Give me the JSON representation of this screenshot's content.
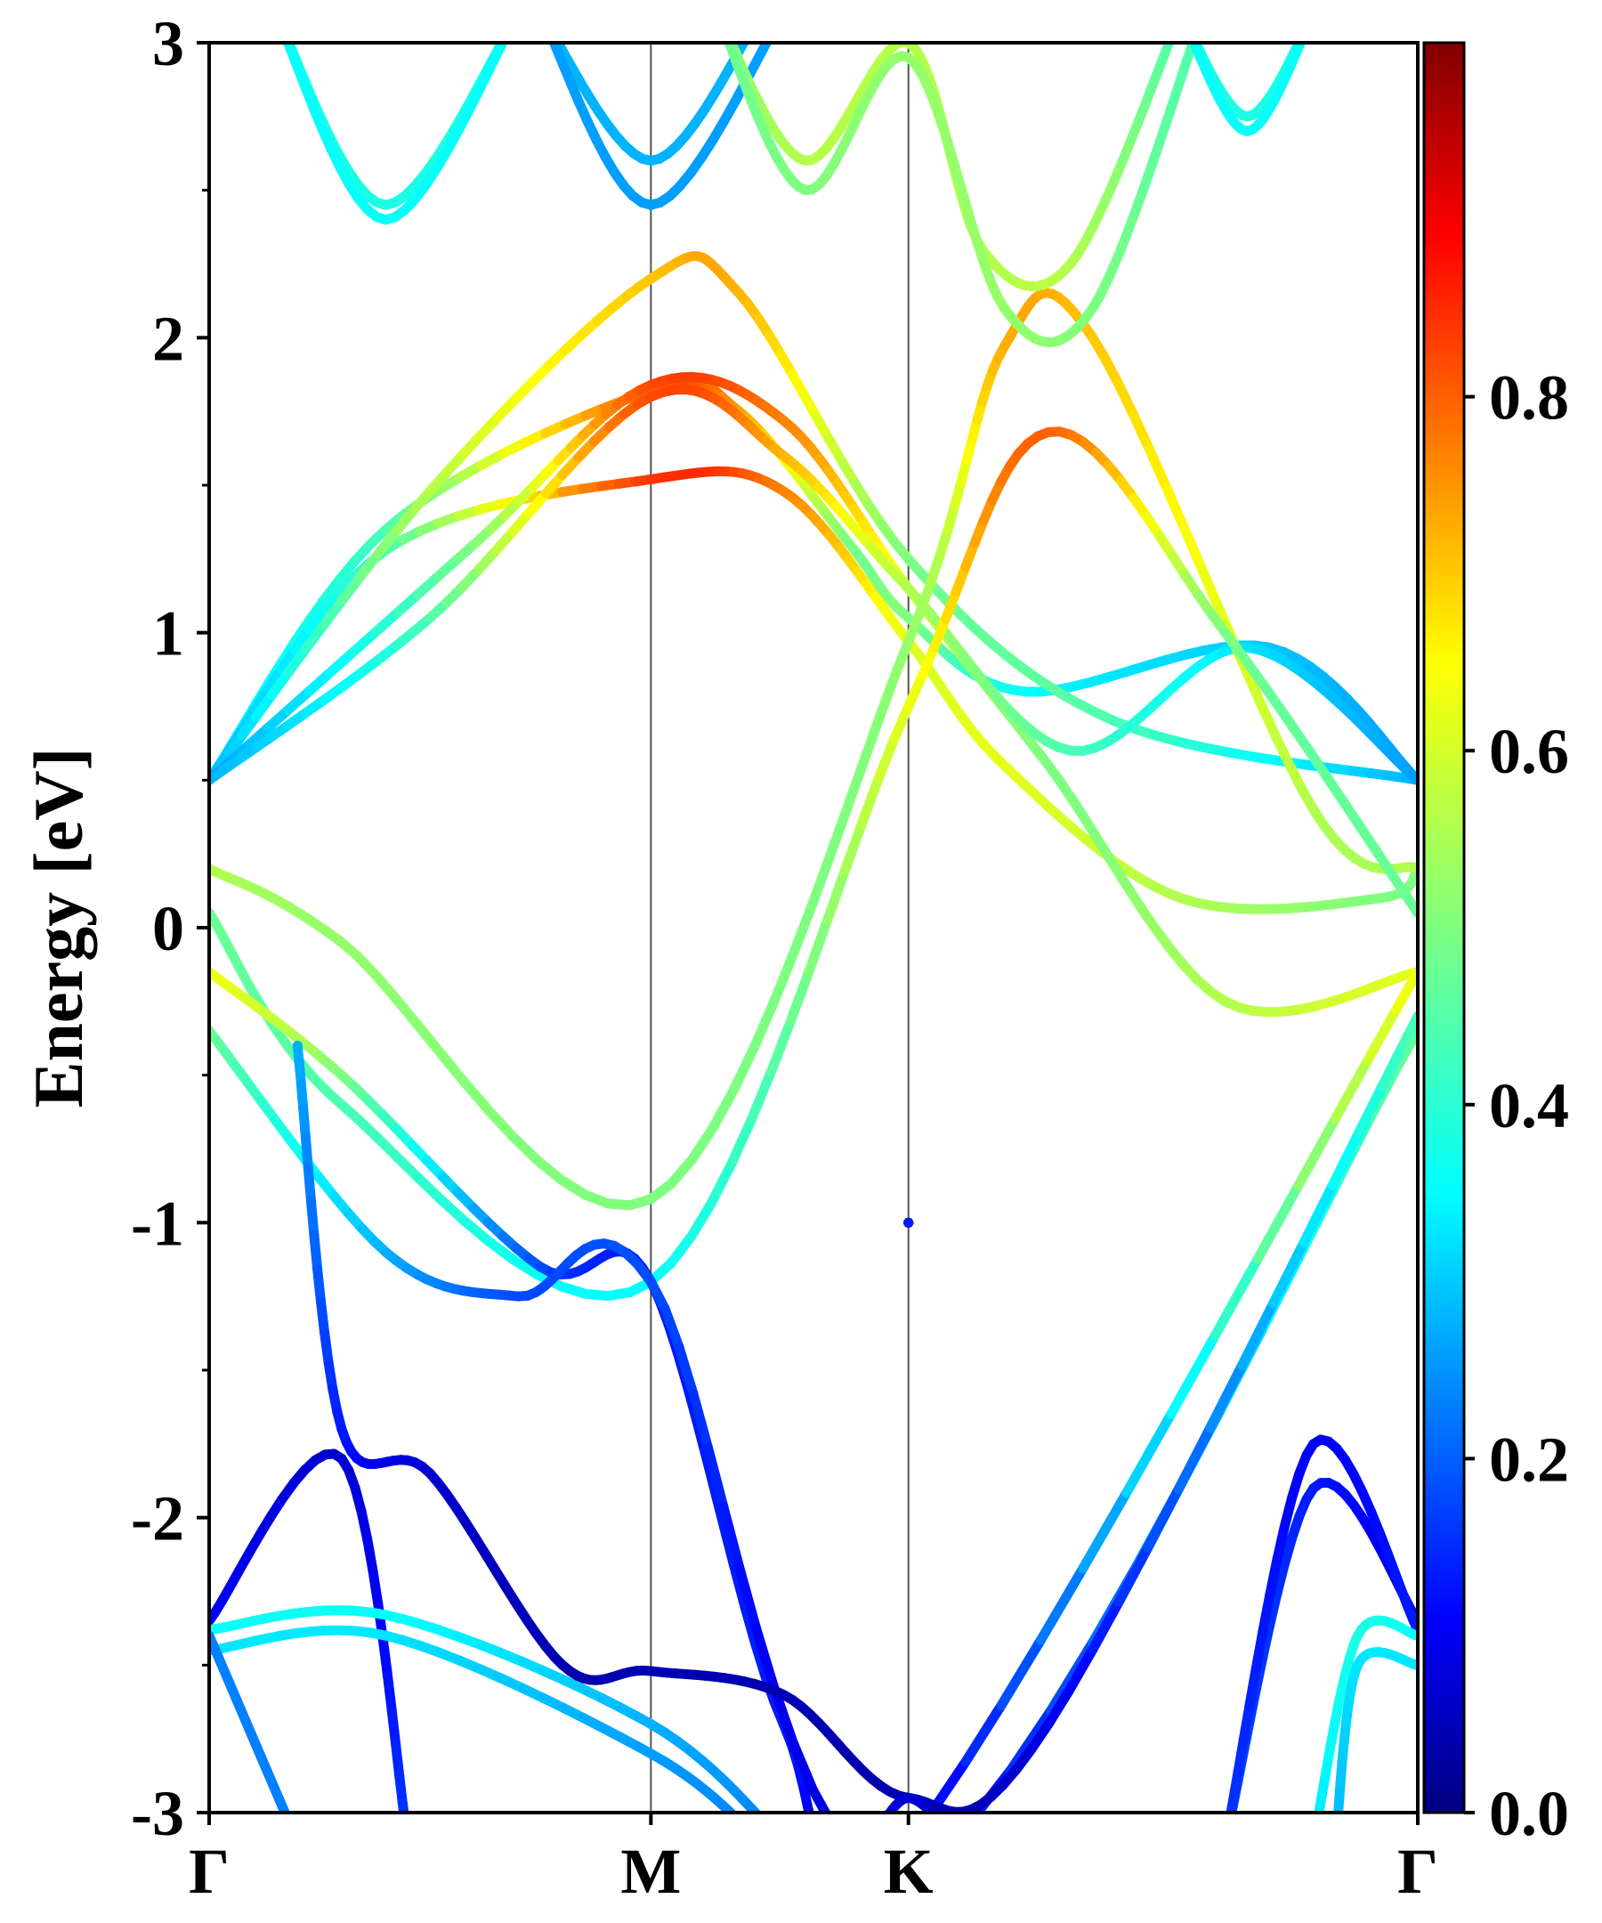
{
  "chart_data": {
    "type": "line",
    "xlabel": "",
    "ylabel": "Energy [eV]",
    "ylim": [
      -3,
      3
    ],
    "y_ticks": [
      "3",
      "2",
      "1",
      "0",
      "-1",
      "-2",
      "-3"
    ],
    "y_tick_values": [
      3,
      2,
      1,
      0,
      -1,
      -2,
      -3
    ],
    "x_ticks": [
      "Γ",
      "M",
      "K",
      "Γ"
    ],
    "x_tick_values": [
      0,
      1,
      1.583,
      2.736
    ],
    "xlim": [
      0,
      2.736
    ],
    "grid": "vertical lines at high-symmetry points",
    "colorbar": {
      "colormap": "jet",
      "range": [
        0,
        1
      ],
      "ticks": [
        "0.0",
        "0.2",
        "0.4",
        "0.6",
        "0.8"
      ],
      "tick_values": [
        0.0,
        0.2,
        0.4,
        0.6,
        0.8
      ]
    },
    "series": [
      {
        "values": [
          [
            0,
            0.5,
            0.35
          ],
          [
            0.4,
            1.35,
            0.45
          ],
          [
            1,
            1.82,
            0.78
          ],
          [
            1.2,
            1.75,
            0.72
          ],
          [
            1.45,
            1.3,
            0.5
          ],
          [
            1.583,
            1.05,
            0.5
          ],
          [
            1.85,
            0.8,
            0.38
          ],
          [
            2.4,
            0.95,
            0.32
          ],
          [
            2.736,
            0.5,
            0.28
          ]
        ]
      },
      {
        "values": [
          [
            0,
            0.5,
            0.3
          ],
          [
            0.4,
            1.28,
            0.45
          ],
          [
            1,
            1.52,
            0.82
          ],
          [
            1.3,
            1.48,
            0.75
          ],
          [
            1.583,
            0.97,
            0.6
          ],
          [
            1.8,
            0.55,
            0.6
          ],
          [
            2.2,
            0.1,
            0.55
          ],
          [
            2.65,
            0.1,
            0.5
          ],
          [
            2.736,
            0.2,
            0.5
          ]
        ]
      },
      {
        "values": [
          [
            0,
            0.5,
            0.3
          ],
          [
            0.5,
            1.48,
            0.55
          ],
          [
            1,
            2.2,
            0.68
          ],
          [
            1.2,
            2.15,
            0.7
          ],
          [
            1.583,
            1.25,
            0.5
          ],
          [
            2.05,
            0.7,
            0.45
          ],
          [
            2.736,
            0.5,
            0.3
          ]
        ]
      },
      {
        "values": [
          [
            0,
            0.5,
            0.28
          ],
          [
            0.6,
            1.3,
            0.5
          ],
          [
            1,
            1.84,
            0.8
          ],
          [
            1.3,
            1.72,
            0.75
          ],
          [
            1.583,
            1.15,
            0.6
          ],
          [
            1.9,
            0.55,
            0.5
          ],
          [
            2.3,
            -0.25,
            0.55
          ],
          [
            2.736,
            -0.15,
            0.6
          ]
        ]
      },
      {
        "values": [
          [
            0,
            0.5,
            0.3
          ],
          [
            0.5,
            1.05,
            0.45
          ],
          [
            1,
            1.8,
            0.8
          ],
          [
            1.3,
            1.6,
            0.7
          ],
          [
            1.583,
            1.15,
            0.55
          ],
          [
            1.95,
            0.6,
            0.45
          ],
          [
            2.35,
            0.95,
            0.35
          ],
          [
            2.736,
            0.5,
            0.28
          ]
        ]
      },
      {
        "values": [
          [
            0,
            0.2,
            0.55
          ],
          [
            0.3,
            -0.05,
            0.52
          ],
          [
            1,
            -0.92,
            0.5
          ],
          [
            1.583,
            0.97,
            0.52
          ],
          [
            1.8,
            1.97,
            0.7
          ],
          [
            2.0,
            2.0,
            0.68
          ],
          [
            2.5,
            0.4,
            0.55
          ],
          [
            2.736,
            0.2,
            0.55
          ]
        ]
      },
      {
        "values": [
          [
            0,
            0.05,
            0.48
          ],
          [
            0.3,
            -0.6,
            0.45
          ],
          [
            1,
            -1.2,
            0.38
          ],
          [
            1.583,
            0.75,
            0.6
          ],
          [
            1.9,
            1.68,
            0.78
          ],
          [
            2.3,
            1.0,
            0.5
          ],
          [
            2.736,
            0.05,
            0.48
          ]
        ]
      },
      {
        "values": [
          [
            0,
            -0.15,
            0.62
          ],
          [
            0.3,
            -0.5,
            0.5
          ],
          [
            0.75,
            -1.15,
            0.2
          ],
          [
            1,
            -1.2,
            0.15
          ],
          [
            1.3,
            -2.7,
            0.15
          ],
          [
            1.583,
            -3.1,
            0.1
          ],
          [
            2.736,
            -0.15,
            0.62
          ]
        ]
      },
      {
        "values": [
          [
            0,
            -0.35,
            0.48
          ],
          [
            0.4,
            -1.1,
            0.3
          ],
          [
            0.7,
            -1.25,
            0.2
          ],
          [
            1,
            -1.2,
            0.2
          ],
          [
            1.583,
            -3.2,
            0.1
          ],
          [
            2.736,
            -0.35,
            0.48
          ]
        ]
      },
      {
        "values": [
          [
            0,
            -2.35,
            0.12
          ],
          [
            0.3,
            -1.8,
            0.08
          ],
          [
            0.45,
            -3.1,
            0.18
          ]
        ]
      },
      {
        "values": [
          [
            0,
            -2.38,
            0.38
          ],
          [
            0.4,
            -2.33,
            0.38
          ],
          [
            1,
            -2.7,
            0.3
          ],
          [
            1.3,
            -3.1,
            0.25
          ]
        ]
      },
      {
        "values": [
          [
            0,
            -2.45,
            0.35
          ],
          [
            0.4,
            -2.4,
            0.35
          ],
          [
            1,
            -2.8,
            0.28
          ],
          [
            1.25,
            -3.1,
            0.25
          ]
        ]
      },
      {
        "values": [
          [
            0,
            -2.4,
            0.25
          ],
          [
            0.2,
            -3.1,
            0.25
          ]
        ]
      },
      {
        "values": [
          [
            0.2,
            -0.4,
            0.3
          ],
          [
            0.3,
            -1.7,
            0.15
          ],
          [
            0.5,
            -1.85,
            0.08
          ],
          [
            0.8,
            -2.5,
            0.05
          ],
          [
            1,
            -2.52,
            0.05
          ],
          [
            1.3,
            -2.6,
            0.05
          ],
          [
            1.583,
            -2.95,
            0.05
          ],
          [
            1.9,
            -2.7,
            0.1
          ],
          [
            2.736,
            -0.3,
            0.45
          ]
        ]
      },
      {
        "values": [
          [
            1.5,
            -3.1,
            0.1
          ],
          [
            1.583,
            -2.95,
            0.08
          ],
          [
            1.7,
            -3.1,
            0.08
          ]
        ]
      },
      {
        "values": [
          [
            1.583,
            -1.0,
            0.15
          ],
          [
            1.583,
            -1.0,
            0.15
          ]
        ]
      },
      {
        "values": [
          [
            2.3,
            -3.1,
            0.2
          ],
          [
            2.5,
            -1.9,
            0.15
          ],
          [
            2.736,
            -2.35,
            0.1
          ]
        ]
      },
      {
        "values": [
          [
            2.3,
            -3.1,
            0.18
          ],
          [
            2.5,
            -1.75,
            0.12
          ],
          [
            2.736,
            -2.38,
            0.15
          ]
        ]
      },
      {
        "values": [
          [
            2.5,
            -3.1,
            0.35
          ],
          [
            2.6,
            -2.4,
            0.4
          ],
          [
            2.736,
            -2.4,
            0.38
          ]
        ]
      },
      {
        "values": [
          [
            2.55,
            -3.1,
            0.3
          ],
          [
            2.6,
            -2.5,
            0.35
          ],
          [
            2.736,
            -2.5,
            0.35
          ]
        ]
      },
      {
        "values": [
          [
            0.15,
            3.1,
            0.4
          ],
          [
            0.4,
            2.45,
            0.4
          ],
          [
            0.7,
            3.1,
            0.4
          ]
        ]
      },
      {
        "values": [
          [
            0.15,
            3.1,
            0.38
          ],
          [
            0.4,
            2.4,
            0.38
          ],
          [
            0.7,
            3.1,
            0.38
          ]
        ]
      },
      {
        "values": [
          [
            0.75,
            3.1,
            0.3
          ],
          [
            1,
            2.6,
            0.3
          ],
          [
            1.25,
            3.1,
            0.3
          ]
        ]
      },
      {
        "values": [
          [
            0.75,
            3.1,
            0.28
          ],
          [
            1,
            2.45,
            0.28
          ],
          [
            1.3,
            3.1,
            0.28
          ]
        ]
      },
      {
        "values": [
          [
            1.15,
            3.1,
            0.5
          ],
          [
            1.35,
            2.6,
            0.55
          ],
          [
            1.583,
            3.0,
            0.55
          ],
          [
            1.75,
            2.3,
            0.55
          ],
          [
            1.95,
            2.25,
            0.55
          ],
          [
            2.2,
            3.1,
            0.45
          ]
        ]
      },
      {
        "values": [
          [
            1.15,
            3.1,
            0.48
          ],
          [
            1.35,
            2.5,
            0.5
          ],
          [
            1.583,
            2.95,
            0.52
          ],
          [
            1.8,
            2.1,
            0.52
          ],
          [
            2.0,
            2.1,
            0.5
          ],
          [
            2.25,
            3.1,
            0.45
          ]
        ]
      },
      {
        "values": [
          [
            2.2,
            3.1,
            0.4
          ],
          [
            2.35,
            2.75,
            0.4
          ],
          [
            2.5,
            3.1,
            0.4
          ]
        ]
      },
      {
        "values": [
          [
            2.2,
            3.1,
            0.38
          ],
          [
            2.35,
            2.7,
            0.38
          ],
          [
            2.5,
            3.1,
            0.38
          ]
        ]
      }
    ]
  }
}
